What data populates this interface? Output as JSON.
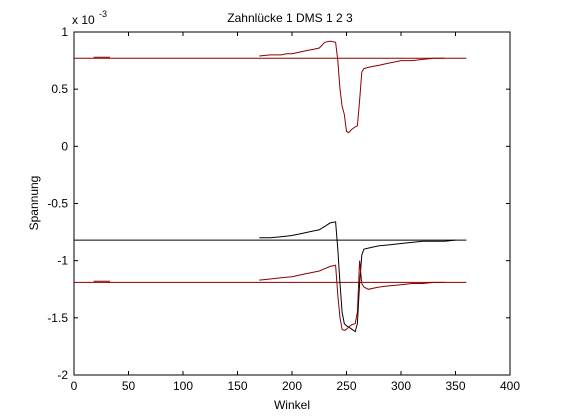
{
  "chart_data": {
    "type": "line",
    "title": "Zahnlücke 1   DMS 1 2 3",
    "xlabel": "Winkel",
    "ylabel": "Spannung",
    "exponent_label": "x 10",
    "exponent_power": "-3",
    "xlim": [
      0,
      400
    ],
    "ylim": [
      -2,
      1
    ],
    "x_ticks": [
      0,
      50,
      100,
      150,
      200,
      250,
      300,
      350,
      400
    ],
    "x_tick_labels": [
      "0",
      "50",
      "100",
      "150",
      "200",
      "250",
      "300",
      "350",
      "400"
    ],
    "y_ticks": [
      1,
      0.5,
      0,
      -0.5,
      -1,
      -1.5,
      -2
    ],
    "y_tick_labels": [
      "1",
      "0.5",
      "0",
      "-0.5",
      "-1",
      "-1.5",
      "-2"
    ],
    "grid": false,
    "legend": "none",
    "series": [
      {
        "color": "#8b0000",
        "values_kind": "horizontal",
        "x": [
          0,
          360
        ],
        "y": [
          0.77,
          0.77
        ]
      },
      {
        "color": "#000000",
        "values_kind": "horizontal",
        "x": [
          0,
          360
        ],
        "y": [
          -0.82,
          -0.82
        ]
      },
      {
        "color": "#8b0000",
        "values_kind": "horizontal",
        "x": [
          0,
          360
        ],
        "y": [
          -1.19,
          -1.19
        ]
      },
      {
        "color": "#8b0000",
        "x": [
          18,
          33
        ],
        "y": [
          0.78,
          0.78
        ]
      },
      {
        "color": "#8b0000",
        "x": [
          18,
          33
        ],
        "y": [
          -1.18,
          -1.18
        ]
      },
      {
        "color": "#8b0000",
        "x": [
          170,
          180,
          190,
          195,
          200,
          205,
          210,
          215,
          220,
          225,
          230,
          235,
          240,
          242,
          244,
          246,
          248,
          250,
          252,
          255,
          258,
          260,
          262,
          264,
          266,
          270,
          275,
          280,
          285,
          290,
          295,
          300,
          310,
          320,
          330,
          340
        ],
        "y": [
          0.79,
          0.8,
          0.8,
          0.81,
          0.81,
          0.82,
          0.83,
          0.84,
          0.85,
          0.86,
          0.91,
          0.92,
          0.91,
          0.75,
          0.5,
          0.35,
          0.28,
          0.13,
          0.12,
          0.15,
          0.17,
          0.18,
          0.4,
          0.65,
          0.68,
          0.69,
          0.7,
          0.71,
          0.72,
          0.73,
          0.74,
          0.75,
          0.75,
          0.76,
          0.77,
          0.77
        ]
      },
      {
        "color": "#000000",
        "x": [
          170,
          180,
          190,
          200,
          210,
          220,
          225,
          230,
          235,
          240,
          242,
          244,
          246,
          248,
          250,
          252,
          255,
          258,
          260,
          262,
          264,
          266,
          270,
          275,
          280,
          290,
          300,
          310,
          320,
          330,
          340,
          350
        ],
        "y": [
          -0.8,
          -0.8,
          -0.79,
          -0.78,
          -0.76,
          -0.74,
          -0.73,
          -0.7,
          -0.67,
          -0.66,
          -0.9,
          -1.2,
          -1.45,
          -1.55,
          -1.57,
          -1.58,
          -1.6,
          -1.62,
          -1.55,
          -1.2,
          -0.95,
          -0.9,
          -0.89,
          -0.88,
          -0.87,
          -0.86,
          -0.85,
          -0.84,
          -0.83,
          -0.83,
          -0.83,
          -0.82
        ]
      },
      {
        "color": "#8b0000",
        "x": [
          170,
          180,
          190,
          200,
          210,
          220,
          225,
          230,
          235,
          240,
          242,
          244,
          246,
          248,
          250,
          252,
          255,
          258,
          260,
          262,
          264,
          266,
          270,
          275,
          280,
          290,
          300,
          310,
          320,
          330,
          340
        ],
        "y": [
          -1.17,
          -1.16,
          -1.15,
          -1.14,
          -1.12,
          -1.1,
          -1.09,
          -1.07,
          -1.05,
          -1.04,
          -1.3,
          -1.5,
          -1.6,
          -1.61,
          -1.6,
          -1.58,
          -1.56,
          -1.55,
          -1.45,
          -1.0,
          -1.2,
          -1.23,
          -1.25,
          -1.24,
          -1.23,
          -1.22,
          -1.21,
          -1.2,
          -1.2,
          -1.19,
          -1.19
        ]
      }
    ]
  }
}
